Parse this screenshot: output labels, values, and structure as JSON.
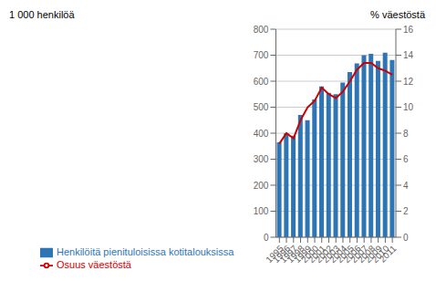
{
  "chart_data": {
    "type": "bar",
    "categories": [
      1995,
      1996,
      1997,
      1998,
      1999,
      2000,
      2001,
      2002,
      2003,
      2004,
      2005,
      2006,
      2007,
      2008,
      2009,
      2010,
      2011
    ],
    "series": [
      {
        "name": "Henkilöitä pienituloisissa kotitalouksissa",
        "type": "bar",
        "color": "#2E75B6",
        "values": [
          365,
          400,
          390,
          470,
          450,
          530,
          580,
          555,
          550,
          595,
          635,
          668,
          700,
          705,
          678,
          710,
          682
        ]
      },
      {
        "name": "Osuus väestöstä",
        "type": "line",
        "color": "#CC0000",
        "axis": "y2",
        "values": [
          7.2,
          8.0,
          7.6,
          9.0,
          10.0,
          10.5,
          11.5,
          11.0,
          10.7,
          11.2,
          12.0,
          12.9,
          13.4,
          13.4,
          13.0,
          12.8,
          12.5
        ]
      }
    ],
    "ylabel": "1 000 henkilöä",
    "y2label": "% väestöstä",
    "ylim": [
      0,
      800
    ],
    "yticks": [
      0,
      100,
      200,
      300,
      400,
      500,
      600,
      700,
      800
    ],
    "y2lim": [
      0,
      16
    ],
    "y2ticks": [
      0,
      2,
      4,
      6,
      8,
      10,
      12,
      14,
      16
    ],
    "grid": true,
    "legend": "bottom"
  }
}
